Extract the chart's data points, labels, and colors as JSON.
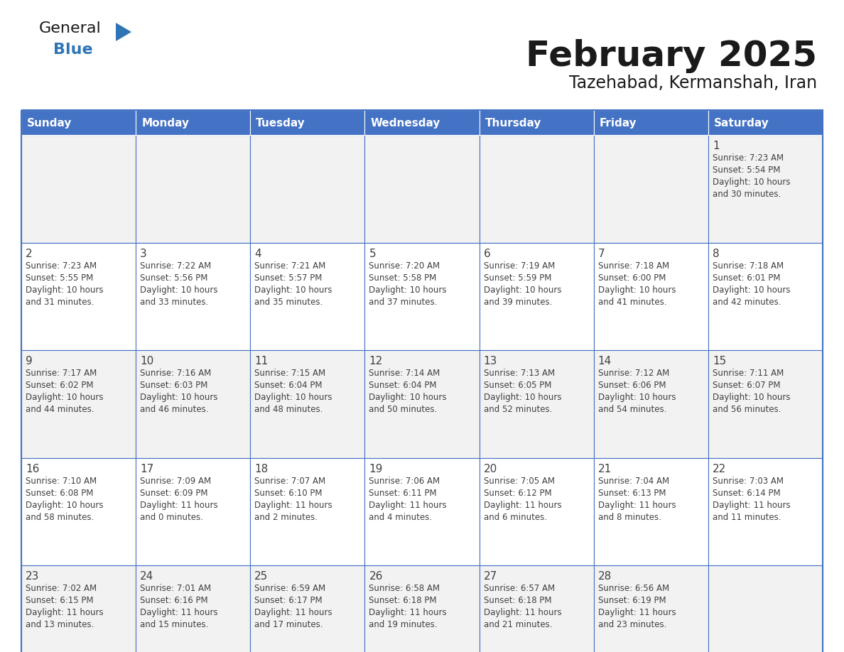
{
  "title": "February 2025",
  "subtitle": "Tazehabad, Kermanshah, Iran",
  "header_bg": "#4472C4",
  "header_text_color": "#FFFFFF",
  "cell_bg_odd": "#F2F2F2",
  "cell_bg_even": "#FFFFFF",
  "border_color": "#4472C4",
  "text_color": "#404040",
  "days_of_week": [
    "Sunday",
    "Monday",
    "Tuesday",
    "Wednesday",
    "Thursday",
    "Friday",
    "Saturday"
  ],
  "calendar_data": [
    [
      null,
      null,
      null,
      null,
      null,
      null,
      {
        "day": "1",
        "sunrise": "7:23 AM",
        "sunset": "5:54 PM",
        "daylight_line1": "Daylight: 10 hours",
        "daylight_line2": "and 30 minutes."
      }
    ],
    [
      {
        "day": "2",
        "sunrise": "7:23 AM",
        "sunset": "5:55 PM",
        "daylight_line1": "Daylight: 10 hours",
        "daylight_line2": "and 31 minutes."
      },
      {
        "day": "3",
        "sunrise": "7:22 AM",
        "sunset": "5:56 PM",
        "daylight_line1": "Daylight: 10 hours",
        "daylight_line2": "and 33 minutes."
      },
      {
        "day": "4",
        "sunrise": "7:21 AM",
        "sunset": "5:57 PM",
        "daylight_line1": "Daylight: 10 hours",
        "daylight_line2": "and 35 minutes."
      },
      {
        "day": "5",
        "sunrise": "7:20 AM",
        "sunset": "5:58 PM",
        "daylight_line1": "Daylight: 10 hours",
        "daylight_line2": "and 37 minutes."
      },
      {
        "day": "6",
        "sunrise": "7:19 AM",
        "sunset": "5:59 PM",
        "daylight_line1": "Daylight: 10 hours",
        "daylight_line2": "and 39 minutes."
      },
      {
        "day": "7",
        "sunrise": "7:18 AM",
        "sunset": "6:00 PM",
        "daylight_line1": "Daylight: 10 hours",
        "daylight_line2": "and 41 minutes."
      },
      {
        "day": "8",
        "sunrise": "7:18 AM",
        "sunset": "6:01 PM",
        "daylight_line1": "Daylight: 10 hours",
        "daylight_line2": "and 42 minutes."
      }
    ],
    [
      {
        "day": "9",
        "sunrise": "7:17 AM",
        "sunset": "6:02 PM",
        "daylight_line1": "Daylight: 10 hours",
        "daylight_line2": "and 44 minutes."
      },
      {
        "day": "10",
        "sunrise": "7:16 AM",
        "sunset": "6:03 PM",
        "daylight_line1": "Daylight: 10 hours",
        "daylight_line2": "and 46 minutes."
      },
      {
        "day": "11",
        "sunrise": "7:15 AM",
        "sunset": "6:04 PM",
        "daylight_line1": "Daylight: 10 hours",
        "daylight_line2": "and 48 minutes."
      },
      {
        "day": "12",
        "sunrise": "7:14 AM",
        "sunset": "6:04 PM",
        "daylight_line1": "Daylight: 10 hours",
        "daylight_line2": "and 50 minutes."
      },
      {
        "day": "13",
        "sunrise": "7:13 AM",
        "sunset": "6:05 PM",
        "daylight_line1": "Daylight: 10 hours",
        "daylight_line2": "and 52 minutes."
      },
      {
        "day": "14",
        "sunrise": "7:12 AM",
        "sunset": "6:06 PM",
        "daylight_line1": "Daylight: 10 hours",
        "daylight_line2": "and 54 minutes."
      },
      {
        "day": "15",
        "sunrise": "7:11 AM",
        "sunset": "6:07 PM",
        "daylight_line1": "Daylight: 10 hours",
        "daylight_line2": "and 56 minutes."
      }
    ],
    [
      {
        "day": "16",
        "sunrise": "7:10 AM",
        "sunset": "6:08 PM",
        "daylight_line1": "Daylight: 10 hours",
        "daylight_line2": "and 58 minutes."
      },
      {
        "day": "17",
        "sunrise": "7:09 AM",
        "sunset": "6:09 PM",
        "daylight_line1": "Daylight: 11 hours",
        "daylight_line2": "and 0 minutes."
      },
      {
        "day": "18",
        "sunrise": "7:07 AM",
        "sunset": "6:10 PM",
        "daylight_line1": "Daylight: 11 hours",
        "daylight_line2": "and 2 minutes."
      },
      {
        "day": "19",
        "sunrise": "7:06 AM",
        "sunset": "6:11 PM",
        "daylight_line1": "Daylight: 11 hours",
        "daylight_line2": "and 4 minutes."
      },
      {
        "day": "20",
        "sunrise": "7:05 AM",
        "sunset": "6:12 PM",
        "daylight_line1": "Daylight: 11 hours",
        "daylight_line2": "and 6 minutes."
      },
      {
        "day": "21",
        "sunrise": "7:04 AM",
        "sunset": "6:13 PM",
        "daylight_line1": "Daylight: 11 hours",
        "daylight_line2": "and 8 minutes."
      },
      {
        "day": "22",
        "sunrise": "7:03 AM",
        "sunset": "6:14 PM",
        "daylight_line1": "Daylight: 11 hours",
        "daylight_line2": "and 11 minutes."
      }
    ],
    [
      {
        "day": "23",
        "sunrise": "7:02 AM",
        "sunset": "6:15 PM",
        "daylight_line1": "Daylight: 11 hours",
        "daylight_line2": "and 13 minutes."
      },
      {
        "day": "24",
        "sunrise": "7:01 AM",
        "sunset": "6:16 PM",
        "daylight_line1": "Daylight: 11 hours",
        "daylight_line2": "and 15 minutes."
      },
      {
        "day": "25",
        "sunrise": "6:59 AM",
        "sunset": "6:17 PM",
        "daylight_line1": "Daylight: 11 hours",
        "daylight_line2": "and 17 minutes."
      },
      {
        "day": "26",
        "sunrise": "6:58 AM",
        "sunset": "6:18 PM",
        "daylight_line1": "Daylight: 11 hours",
        "daylight_line2": "and 19 minutes."
      },
      {
        "day": "27",
        "sunrise": "6:57 AM",
        "sunset": "6:18 PM",
        "daylight_line1": "Daylight: 11 hours",
        "daylight_line2": "and 21 minutes."
      },
      {
        "day": "28",
        "sunrise": "6:56 AM",
        "sunset": "6:19 PM",
        "daylight_line1": "Daylight: 11 hours",
        "daylight_line2": "and 23 minutes."
      },
      null
    ]
  ],
  "logo_triangle_color": "#2E75B6",
  "logo_general_color": "#1a1a1a",
  "logo_blue_color": "#2E75B6"
}
